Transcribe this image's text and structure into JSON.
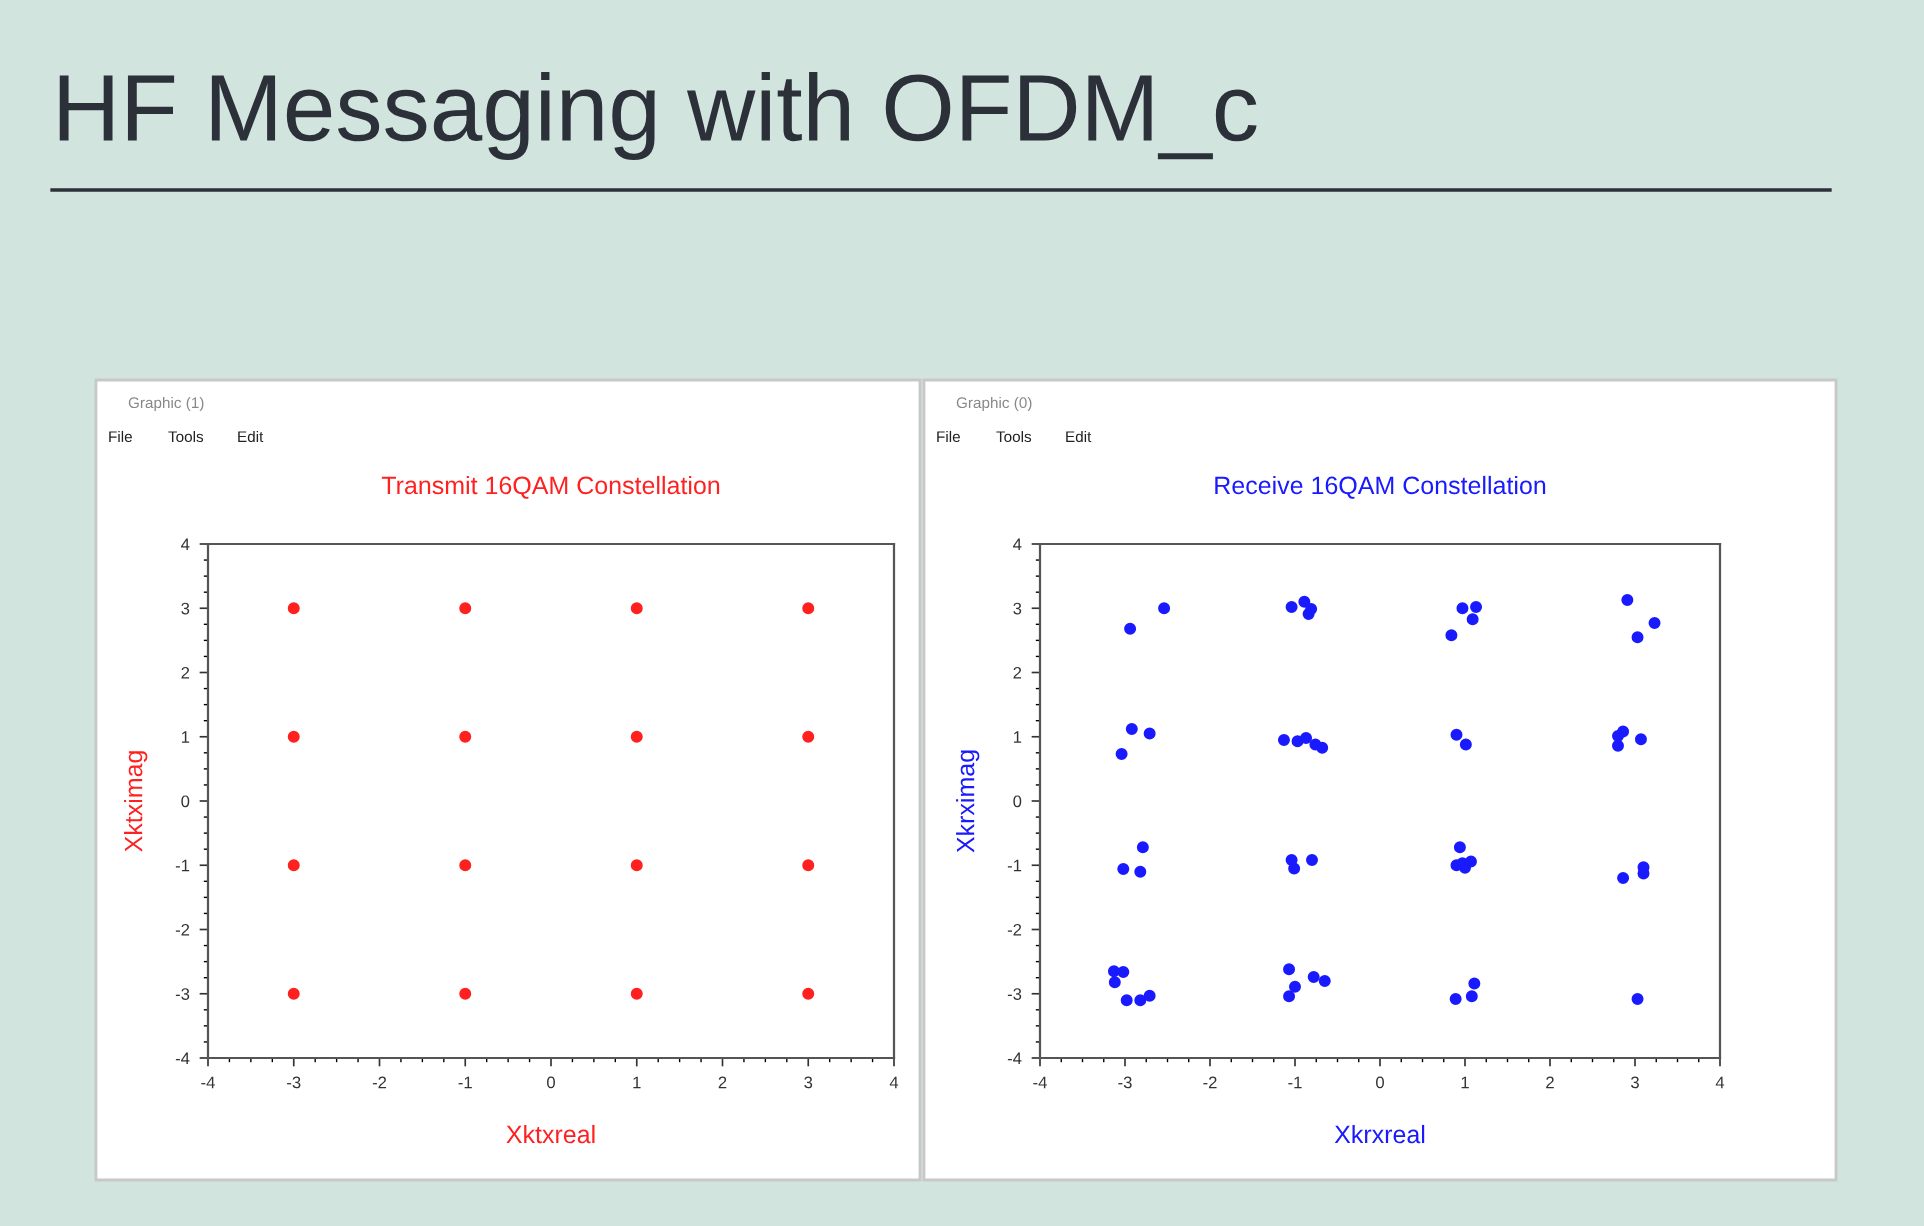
{
  "chart_data": [
    {
      "type": "scatter",
      "title": "Transmit 16QAM Constellation",
      "xlabel": "Xktxreal",
      "ylabel": "Xktximag",
      "annotations": [
        "HF Messaging with OFDM_c",
        "Graphic (1)",
        "File",
        "Tools",
        "Edit"
      ],
      "x": [
        -3,
        -1,
        1,
        3,
        -3,
        -1,
        1,
        3,
        -3,
        -1,
        1,
        3,
        -3,
        -1,
        1,
        3
      ],
      "series": [
        {
          "color": "#ff2020",
          "values": [
            3,
            3,
            3,
            3,
            1,
            1,
            1,
            1,
            -1,
            -1,
            -1,
            -1,
            -3,
            -3,
            -3,
            -3
          ]
        }
      ],
      "marker": "circle",
      "grid": false,
      "legend": false,
      "xlim": [
        -4,
        4
      ],
      "ylim": [
        -4,
        4
      ],
      "xticks": [
        -4,
        -3,
        -2,
        -1,
        0,
        1,
        2,
        3,
        4
      ],
      "yticks": [
        -4,
        -3,
        -2,
        -1,
        0,
        1,
        2,
        3,
        4
      ]
    },
    {
      "type": "scatter",
      "title": "Receive 16QAM Constellation",
      "xlabel": "Xkrxreal",
      "ylabel": "Xkrximag",
      "annotations": [
        "Graphic (0)",
        "File",
        "Tools",
        "Edit"
      ],
      "x": [
        -2.54,
        -2.94,
        -1.04,
        -0.89,
        -0.81,
        -0.84,
        0.97,
        1.13,
        1.09,
        0.84,
        2.91,
        3.23,
        3.03,
        -2.92,
        -2.71,
        -3.04,
        -1.13,
        -0.97,
        -0.87,
        -0.76,
        -0.68,
        0.9,
        1.01,
        2.86,
        2.8,
        2.8,
        3.07,
        -2.79,
        -3.02,
        -2.82,
        -1.04,
        -1.01,
        -0.8,
        0.94,
        0.9,
        1.0,
        1.07,
        0.97,
        2.86,
        3.1,
        3.1,
        -3.13,
        -3.02,
        -3.12,
        -2.98,
        -2.82,
        -2.71,
        -1.07,
        -1.0,
        -1.07,
        -0.78,
        -0.65,
        0.89,
        1.08,
        1.11,
        3.03
      ],
      "series": [
        {
          "color": "#1a1aff",
          "values": [
            3.0,
            2.68,
            3.02,
            3.1,
            2.99,
            2.91,
            3.0,
            3.02,
            2.83,
            2.58,
            3.13,
            2.77,
            2.55,
            1.12,
            1.05,
            0.73,
            0.95,
            0.93,
            0.98,
            0.88,
            0.83,
            1.03,
            0.88,
            1.08,
            1.01,
            0.86,
            0.96,
            -0.72,
            -1.06,
            -1.1,
            -0.92,
            -1.05,
            -0.92,
            -0.72,
            -1.0,
            -1.04,
            -0.94,
            -0.97,
            -1.2,
            -1.03,
            -1.13,
            -2.65,
            -2.66,
            -2.82,
            -3.1,
            -3.1,
            -3.03,
            -2.62,
            -2.89,
            -3.04,
            -2.74,
            -2.8,
            -3.08,
            -3.04,
            -2.84,
            -3.08
          ]
        }
      ],
      "marker": "circle",
      "grid": false,
      "legend": false,
      "xlim": [
        -4,
        4
      ],
      "ylim": [
        -4,
        4
      ],
      "xticks": [
        -4,
        -3,
        -2,
        -1,
        0,
        1,
        2,
        3,
        4
      ],
      "yticks": [
        -4,
        -3,
        -2,
        -1,
        0,
        1,
        2,
        3,
        4
      ]
    }
  ]
}
